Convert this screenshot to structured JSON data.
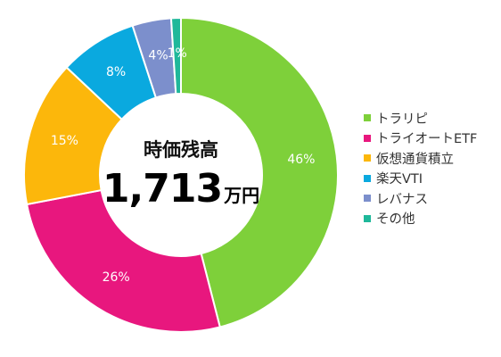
{
  "chart_data": {
    "type": "pie",
    "donut": true,
    "center": {
      "title": "時価残高",
      "value": "1,713",
      "unit": "万円"
    },
    "legend_position": "right",
    "slices": [
      {
        "name": "トラリピ",
        "value": 46,
        "label": "46%",
        "color": "#7ed03a"
      },
      {
        "name": "トライオートETF",
        "value": 26,
        "label": "26%",
        "color": "#e8177e"
      },
      {
        "name": "仮想通貨積立",
        "value": 15,
        "label": "15%",
        "color": "#fcb70b"
      },
      {
        "name": "楽天VTI",
        "value": 8,
        "label": "8%",
        "color": "#0aa9df"
      },
      {
        "name": "レバナス",
        "value": 4,
        "label": "4%",
        "color": "#7c8fcc"
      },
      {
        "name": "その他",
        "value": 1,
        "label": "1%",
        "color": "#1fb89a"
      }
    ]
  }
}
